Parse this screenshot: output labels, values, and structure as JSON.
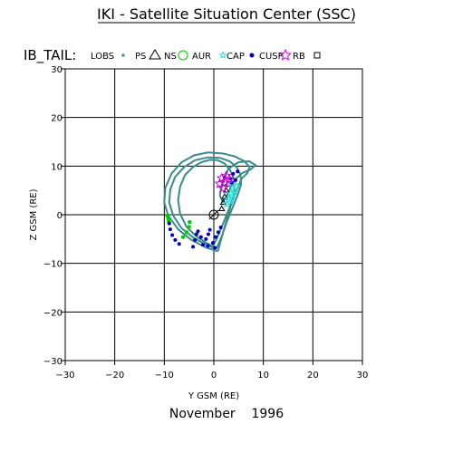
{
  "page_title": "IKI - Satellite Situation Center (SSC)",
  "chart_data": {
    "type": "line",
    "title": "IKI - Satellite Situation Center (SSC)",
    "spacecraft": "IB_TAIL:",
    "xlabel": "Y GSM (RE)",
    "ylabel": "Z GSM (RE)",
    "xlim": [
      -30,
      30
    ],
    "ylim": [
      -30,
      30
    ],
    "x_ticks": [
      -30,
      -20,
      -10,
      0,
      10,
      20,
      30
    ],
    "y_ticks": [
      -30,
      -20,
      -10,
      0,
      10,
      20,
      30
    ],
    "x_tick_labels": [
      "−30",
      "−20",
      "−10",
      "0",
      "10",
      "20",
      "30"
    ],
    "y_tick_labels": [
      "−30",
      "−20",
      "−10",
      "0",
      "10",
      "20",
      "30"
    ],
    "grid": true,
    "legend_placement": "top",
    "legend": [
      {
        "label": "LOBS",
        "marker": "small-square",
        "color": "#3a8a8a"
      },
      {
        "label": "PS",
        "marker": "triangle",
        "color": "#000000"
      },
      {
        "label": "NS",
        "marker": "circle",
        "color": "#00cc00"
      },
      {
        "label": "AUR",
        "marker": "star",
        "color": "#33dddd"
      },
      {
        "label": "CAP",
        "marker": "dot",
        "color": "#0000bb"
      },
      {
        "label": "CUSP",
        "marker": "star",
        "color": "#cc00cc"
      },
      {
        "label": "RB",
        "marker": "square",
        "color": "#000000"
      }
    ],
    "origin_marker": {
      "x": 0,
      "y": 0,
      "label": "Earth"
    },
    "series": [
      {
        "kind": "orbit",
        "color": "#3a8a8a",
        "points": [
          [
            -0.2,
            -6.5
          ],
          [
            -1.5,
            -5.8
          ],
          [
            -3.5,
            -4.5
          ],
          [
            -5.5,
            -2.5
          ],
          [
            -6.8,
            0.2
          ],
          [
            -7.2,
            3
          ],
          [
            -6.8,
            5.8
          ],
          [
            -5.8,
            8.2
          ],
          [
            -4.2,
            9.8
          ],
          [
            -2.5,
            10.8
          ],
          [
            -0.8,
            11.3
          ],
          [
            0.8,
            11.2
          ],
          [
            2.2,
            10.5
          ],
          [
            3.3,
            9.2
          ],
          [
            4,
            7.5
          ],
          [
            4.2,
            5.5
          ],
          [
            3.8,
            3.2
          ],
          [
            3,
            1
          ],
          [
            2,
            -1.5
          ],
          [
            1,
            -4
          ],
          [
            -0.2,
            -6.5
          ]
        ]
      },
      {
        "kind": "orbit",
        "color": "#3a8a8a",
        "points": [
          [
            0.5,
            -7
          ],
          [
            -1.5,
            -6.2
          ],
          [
            -4,
            -4.8
          ],
          [
            -6.5,
            -2.8
          ],
          [
            -8.2,
            -0.2
          ],
          [
            -9,
            2.5
          ],
          [
            -8.8,
            5.2
          ],
          [
            -7.8,
            7.8
          ],
          [
            -6,
            9.8
          ],
          [
            -3.8,
            11.2
          ],
          [
            -1.2,
            11.8
          ],
          [
            1.2,
            11.7
          ],
          [
            3.2,
            11
          ],
          [
            4.6,
            9.8
          ],
          [
            5.4,
            8.2
          ],
          [
            5.5,
            6.2
          ],
          [
            4.8,
            4
          ],
          [
            3.8,
            1.5
          ],
          [
            2.6,
            -1.5
          ],
          [
            1.6,
            -4.5
          ],
          [
            0.5,
            -7
          ]
        ]
      },
      {
        "kind": "orbit",
        "color": "#3a8a8a",
        "points": [
          [
            0.8,
            -7.5
          ],
          [
            -1.5,
            -6.8
          ],
          [
            -4.5,
            -5.2
          ],
          [
            -7.2,
            -3
          ],
          [
            -9.2,
            -0.2
          ],
          [
            -10,
            2.5
          ],
          [
            -9.8,
            5.5
          ],
          [
            -8.5,
            8.5
          ],
          [
            -6.5,
            10.8
          ],
          [
            -4,
            12.2
          ],
          [
            -1.2,
            12.8
          ],
          [
            1.8,
            12.6
          ],
          [
            4.2,
            12
          ],
          [
            6.2,
            11
          ],
          [
            7.2,
            9.8
          ],
          [
            6.8,
            8.6
          ],
          [
            5.6,
            7.4
          ],
          [
            4.4,
            4.6
          ],
          [
            3.4,
            1.8
          ],
          [
            2.2,
            -2.5
          ],
          [
            0.8,
            -7.5
          ]
        ]
      },
      {
        "kind": "orbit",
        "color": "#3a8a8a",
        "points": [
          [
            1.2,
            4
          ],
          [
            1.8,
            7
          ],
          [
            3,
            9.5
          ],
          [
            5,
            10.8
          ],
          [
            7.2,
            11
          ],
          [
            8.4,
            10.2
          ],
          [
            7.4,
            9.3
          ],
          [
            5.8,
            8.6
          ],
          [
            4.4,
            7.4
          ],
          [
            3.4,
            5.6
          ],
          [
            2.6,
            3.8
          ],
          [
            1.8,
            2.6
          ],
          [
            1.2,
            4
          ]
        ]
      },
      {
        "kind": "PS",
        "color": "#000000",
        "points": [
          [
            1.6,
            1.2
          ],
          [
            1.9,
            2.5
          ],
          [
            2.2,
            3.7
          ],
          [
            2.5,
            5
          ],
          [
            2.8,
            6.3
          ]
        ]
      },
      {
        "kind": "NS",
        "color": "#00cc00",
        "points": [
          [
            -9.4,
            -0.2
          ],
          [
            -9.2,
            -0.8
          ],
          [
            -9.1,
            -1.4
          ],
          [
            -6.2,
            -4.6
          ],
          [
            -5.5,
            -3.6
          ],
          [
            -5,
            -2.5
          ],
          [
            -4.9,
            -1.5
          ]
        ]
      },
      {
        "kind": "AUR",
        "color": "#33dddd",
        "points": [
          [
            2.6,
            2.2
          ],
          [
            3,
            3.2
          ],
          [
            3.5,
            4.3
          ],
          [
            4.1,
            5.1
          ],
          [
            3.6,
            6.2
          ],
          [
            3.8,
            4
          ],
          [
            3.3,
            2.8
          ],
          [
            4.6,
            5.8
          ]
        ]
      },
      {
        "kind": "CAP",
        "color": "#0000bb",
        "points": [
          [
            -9,
            -1.8
          ],
          [
            -8.8,
            -3
          ],
          [
            -8.4,
            -4.2
          ],
          [
            -7.8,
            -5.2
          ],
          [
            -7,
            -6
          ],
          [
            -4.2,
            -6.6
          ],
          [
            -3.8,
            -5.2
          ],
          [
            -3.5,
            -4
          ],
          [
            -3.2,
            -3.4
          ],
          [
            -2.2,
            -6.2
          ],
          [
            -1.6,
            -5
          ],
          [
            -1.1,
            -4
          ],
          [
            -0.8,
            -3.1
          ],
          [
            -0.2,
            -5.8
          ],
          [
            0.4,
            -4.6
          ],
          [
            0.9,
            -3.6
          ],
          [
            1.4,
            -2.6
          ],
          [
            -2.6,
            -4.6
          ],
          [
            -1.2,
            -6.4
          ],
          [
            0.2,
            -6.8
          ],
          [
            3.4,
            7.4
          ],
          [
            3.9,
            8.4
          ],
          [
            4.4,
            7.1
          ],
          [
            2.2,
            7.7
          ],
          [
            4.8,
            8.9
          ],
          [
            3.6,
            6.6
          ]
        ]
      },
      {
        "kind": "CUSP",
        "color": "#cc00cc",
        "points": [
          [
            1.2,
            6.4
          ],
          [
            1.6,
            7.5
          ],
          [
            2.2,
            6.6
          ],
          [
            2.5,
            8
          ],
          [
            1.8,
            5.5
          ],
          [
            3.1,
            7.3
          ]
        ]
      }
    ],
    "date_label": "November    1996"
  }
}
